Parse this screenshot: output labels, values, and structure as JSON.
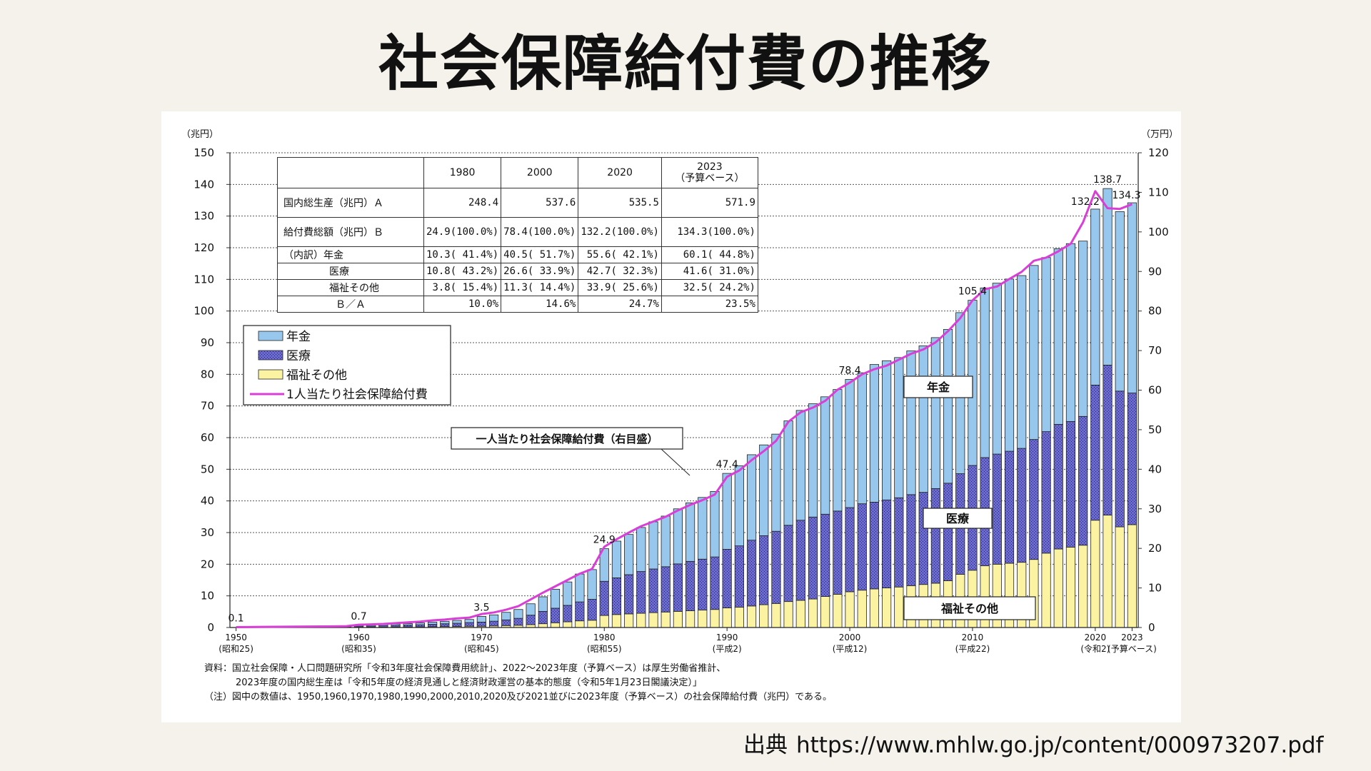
{
  "title": "社会保障給付費の推移",
  "source": {
    "label": "出典",
    "url": "https://www.mhlw.go.jp/content/000973207.pdf"
  },
  "chart_data": {
    "type": "bar",
    "stacked": true,
    "y_left": {
      "unit": "（兆円）",
      "range": [
        0,
        150
      ],
      "ticks": [
        0,
        10,
        20,
        30,
        40,
        50,
        60,
        70,
        80,
        90,
        100,
        110,
        120,
        130,
        140,
        150
      ]
    },
    "y_right": {
      "unit": "（万円）",
      "range": [
        0,
        120
      ],
      "ticks": [
        0,
        10,
        20,
        30,
        40,
        50,
        60,
        70,
        80,
        90,
        100,
        110,
        120
      ]
    },
    "x_ticks": [
      {
        "year": 1950,
        "label": "1950",
        "sub": "(昭和25)"
      },
      {
        "year": 1960,
        "label": "1960",
        "sub": "(昭和35)"
      },
      {
        "year": 1970,
        "label": "1970",
        "sub": "(昭和45)"
      },
      {
        "year": 1980,
        "label": "1980",
        "sub": "(昭和55)"
      },
      {
        "year": 1990,
        "label": "1990",
        "sub": "(平成2)"
      },
      {
        "year": 2000,
        "label": "2000",
        "sub": "(平成12)"
      },
      {
        "year": 2010,
        "label": "2010",
        "sub": "(平成22)"
      },
      {
        "year": 2020,
        "label": "2020",
        "sub": "(令和2)"
      },
      {
        "year": 2023,
        "label": "2023",
        "sub": "(予算ベース)"
      }
    ],
    "years": [
      1950,
      1951,
      1952,
      1953,
      1954,
      1955,
      1956,
      1957,
      1958,
      1959,
      1960,
      1961,
      1962,
      1963,
      1964,
      1965,
      1966,
      1967,
      1968,
      1969,
      1970,
      1971,
      1972,
      1973,
      1974,
      1975,
      1976,
      1977,
      1978,
      1979,
      1980,
      1981,
      1982,
      1983,
      1984,
      1985,
      1986,
      1987,
      1988,
      1989,
      1990,
      1991,
      1992,
      1993,
      1994,
      1995,
      1996,
      1997,
      1998,
      1999,
      2000,
      2001,
      2002,
      2003,
      2004,
      2005,
      2006,
      2007,
      2008,
      2009,
      2010,
      2011,
      2012,
      2013,
      2014,
      2015,
      2016,
      2017,
      2018,
      2019,
      2020,
      2021,
      2022,
      2023
    ],
    "series": [
      {
        "name": "福祉その他",
        "color": "#fbf3a2",
        "values": [
          0.05,
          0.06,
          0.07,
          0.08,
          0.08,
          0.09,
          0.09,
          0.1,
          0.1,
          0.11,
          0.12,
          0.13,
          0.15,
          0.17,
          0.2,
          0.23,
          0.27,
          0.31,
          0.35,
          0.4,
          0.4,
          0.5,
          0.6,
          0.7,
          0.9,
          1.2,
          1.5,
          1.8,
          2.1,
          2.3,
          3.8,
          4.1,
          4.3,
          4.5,
          4.7,
          4.9,
          5.1,
          5.3,
          5.5,
          5.7,
          6.2,
          6.4,
          6.8,
          7.2,
          7.6,
          8.2,
          8.6,
          9.0,
          9.8,
          10.5,
          11.3,
          11.8,
          12.2,
          12.5,
          12.8,
          13.2,
          13.6,
          14.0,
          14.8,
          16.8,
          18.1,
          19.5,
          20.0,
          20.3,
          20.6,
          21.5,
          23.5,
          24.8,
          25.4,
          26.0,
          33.9,
          35.5,
          31.8,
          32.5
        ]
      },
      {
        "name": "医療",
        "color": "#5b5bc0",
        "values": [
          0.05,
          0.06,
          0.07,
          0.08,
          0.09,
          0.1,
          0.11,
          0.12,
          0.14,
          0.16,
          0.3,
          0.34,
          0.4,
          0.47,
          0.55,
          0.65,
          0.76,
          0.88,
          1.0,
          1.15,
          1.3,
          1.5,
          1.8,
          2.2,
          3.0,
          3.9,
          4.6,
          5.2,
          6.0,
          6.6,
          10.8,
          11.6,
          12.4,
          13.2,
          13.8,
          14.3,
          15.0,
          15.6,
          16.1,
          16.6,
          18.5,
          19.4,
          20.8,
          21.8,
          22.8,
          24.1,
          25.3,
          25.9,
          26.0,
          26.3,
          26.6,
          27.3,
          27.4,
          27.8,
          28.2,
          28.8,
          29.1,
          29.9,
          30.8,
          31.8,
          33.1,
          34.2,
          34.8,
          35.4,
          36.0,
          37.9,
          38.4,
          39.4,
          39.7,
          40.7,
          42.7,
          47.4,
          42.9,
          41.6
        ]
      },
      {
        "name": "年金",
        "color": "#97c7ec",
        "values": [
          0.0,
          0.0,
          0.0,
          0.0,
          0.01,
          0.01,
          0.02,
          0.02,
          0.03,
          0.03,
          0.3,
          0.33,
          0.38,
          0.44,
          0.5,
          0.58,
          0.68,
          0.78,
          0.9,
          1.0,
          1.8,
          2.0,
          2.4,
          2.8,
          3.6,
          4.6,
          6.0,
          7.4,
          8.8,
          9.4,
          10.3,
          11.6,
          12.7,
          13.9,
          14.9,
          16.0,
          17.4,
          18.5,
          19.5,
          20.7,
          24.0,
          25.3,
          27.0,
          28.7,
          30.7,
          33.0,
          34.7,
          35.8,
          37.1,
          38.4,
          40.5,
          41.4,
          43.5,
          44.0,
          44.3,
          45.4,
          46.3,
          47.7,
          48.6,
          50.9,
          52.2,
          53.6,
          54.0,
          54.4,
          54.6,
          55.0,
          55.0,
          55.5,
          56.2,
          55.4,
          55.6,
          55.8,
          56.7,
          60.1
        ]
      }
    ],
    "per_capita": {
      "name": "1人当たり社会保障給付費",
      "unit": "万円",
      "color": "#d93fd6",
      "values": [
        0.1,
        0.12,
        0.15,
        0.18,
        0.2,
        0.22,
        0.24,
        0.27,
        0.3,
        0.33,
        0.7,
        0.8,
        0.9,
        1.1,
        1.3,
        1.5,
        1.8,
        2.0,
        2.3,
        2.5,
        3.4,
        3.8,
        4.5,
        5.4,
        7.1,
        8.8,
        10.4,
        12.0,
        13.6,
        14.8,
        20.4,
        22.3,
        24.0,
        25.6,
        26.8,
        28.0,
        29.6,
        31.0,
        32.2,
        33.6,
        38.1,
        39.7,
        42.3,
        44.6,
        47.2,
        52.0,
        54.4,
        55.6,
        57.3,
        60.1,
        61.9,
        64.0,
        65.3,
        66.2,
        67.7,
        69.2,
        70.3,
        72.1,
        74.9,
        78.2,
        82.7,
        85.5,
        86.2,
        88.1,
        89.9,
        92.7,
        93.5,
        95.1,
        97.0,
        102.4,
        110.3,
        106.0,
        105.8,
        107.0
      ]
    },
    "data_labels": [
      {
        "year": 1950,
        "text": "0.1"
      },
      {
        "year": 1960,
        "text": "0.7"
      },
      {
        "year": 1970,
        "text": "3.5"
      },
      {
        "year": 1980,
        "text": "24.9"
      },
      {
        "year": 1990,
        "text": "47.4"
      },
      {
        "year": 2000,
        "text": "78.4"
      },
      {
        "year": 2010,
        "text": "105.4"
      },
      {
        "year": 2020,
        "text": "132.2"
      },
      {
        "year": 2021,
        "text": "138.7"
      },
      {
        "year": 2023,
        "text": "134.3"
      }
    ],
    "legend": {
      "items": [
        {
          "name": "年金",
          "color": "#97c7ec"
        },
        {
          "name": "医療",
          "color": "#5b5bc0"
        },
        {
          "name": "福祉その他",
          "color": "#fbf3a2"
        },
        {
          "name": "1人当たり社会保障給付費",
          "color": "#d93fd6",
          "line": true
        }
      ],
      "placement": "upper-left"
    },
    "annotations": {
      "pension": "年金",
      "medical": "医療",
      "welfare": "福祉その他",
      "per_capita_callout": "一人当たり社会保障給付費（右目盛）"
    },
    "table": {
      "header": [
        "",
        "1980",
        "2000",
        "2020",
        "2023",
        "（予算ベース）"
      ],
      "rows": [
        {
          "label": "国内総生産（兆円）Ａ",
          "cells": [
            "248.4",
            "537.6",
            "535.5",
            "571.9"
          ]
        },
        {
          "label": "給付費総額（兆円）Ｂ",
          "cells": [
            "24.9(100.0%)",
            "78.4(100.0%)",
            "132.2(100.0%)",
            "134.3(100.0%)"
          ]
        },
        {
          "label": "（内訳）年金",
          "cells": [
            "10.3( 41.4%)",
            "40.5( 51.7%)",
            "55.6( 42.1%)",
            "60.1( 44.8%)"
          ]
        },
        {
          "label": "医療",
          "cells": [
            "10.8( 43.2%)",
            "26.6( 33.9%)",
            "42.7( 32.3%)",
            "41.6( 31.0%)"
          ]
        },
        {
          "label": "福祉その他",
          "cells": [
            "3.8( 15.4%)",
            "11.3( 14.4%)",
            "33.9( 25.6%)",
            "32.5( 24.2%)"
          ]
        },
        {
          "label": "Ｂ／Ａ",
          "cells": [
            "10.0%",
            "14.6%",
            "24.7%",
            "23.5%"
          ]
        }
      ]
    },
    "notes": [
      "資料：国立社会保障・人口問題研究所「令和3年度社会保障費用統計」、2022～2023年度（予算ベース）は厚生労働省推計、",
      "2023年度の国内総生産は「令和5年度の経済見通しと経済財政運営の基本的態度（令和5年1月23日閣議決定）」",
      "（注）図中の数値は、1950,1960,1970,1980,1990,2000,2010,2020及び2021並びに2023年度（予算ベース）の社会保障給付費（兆円）である。"
    ]
  }
}
